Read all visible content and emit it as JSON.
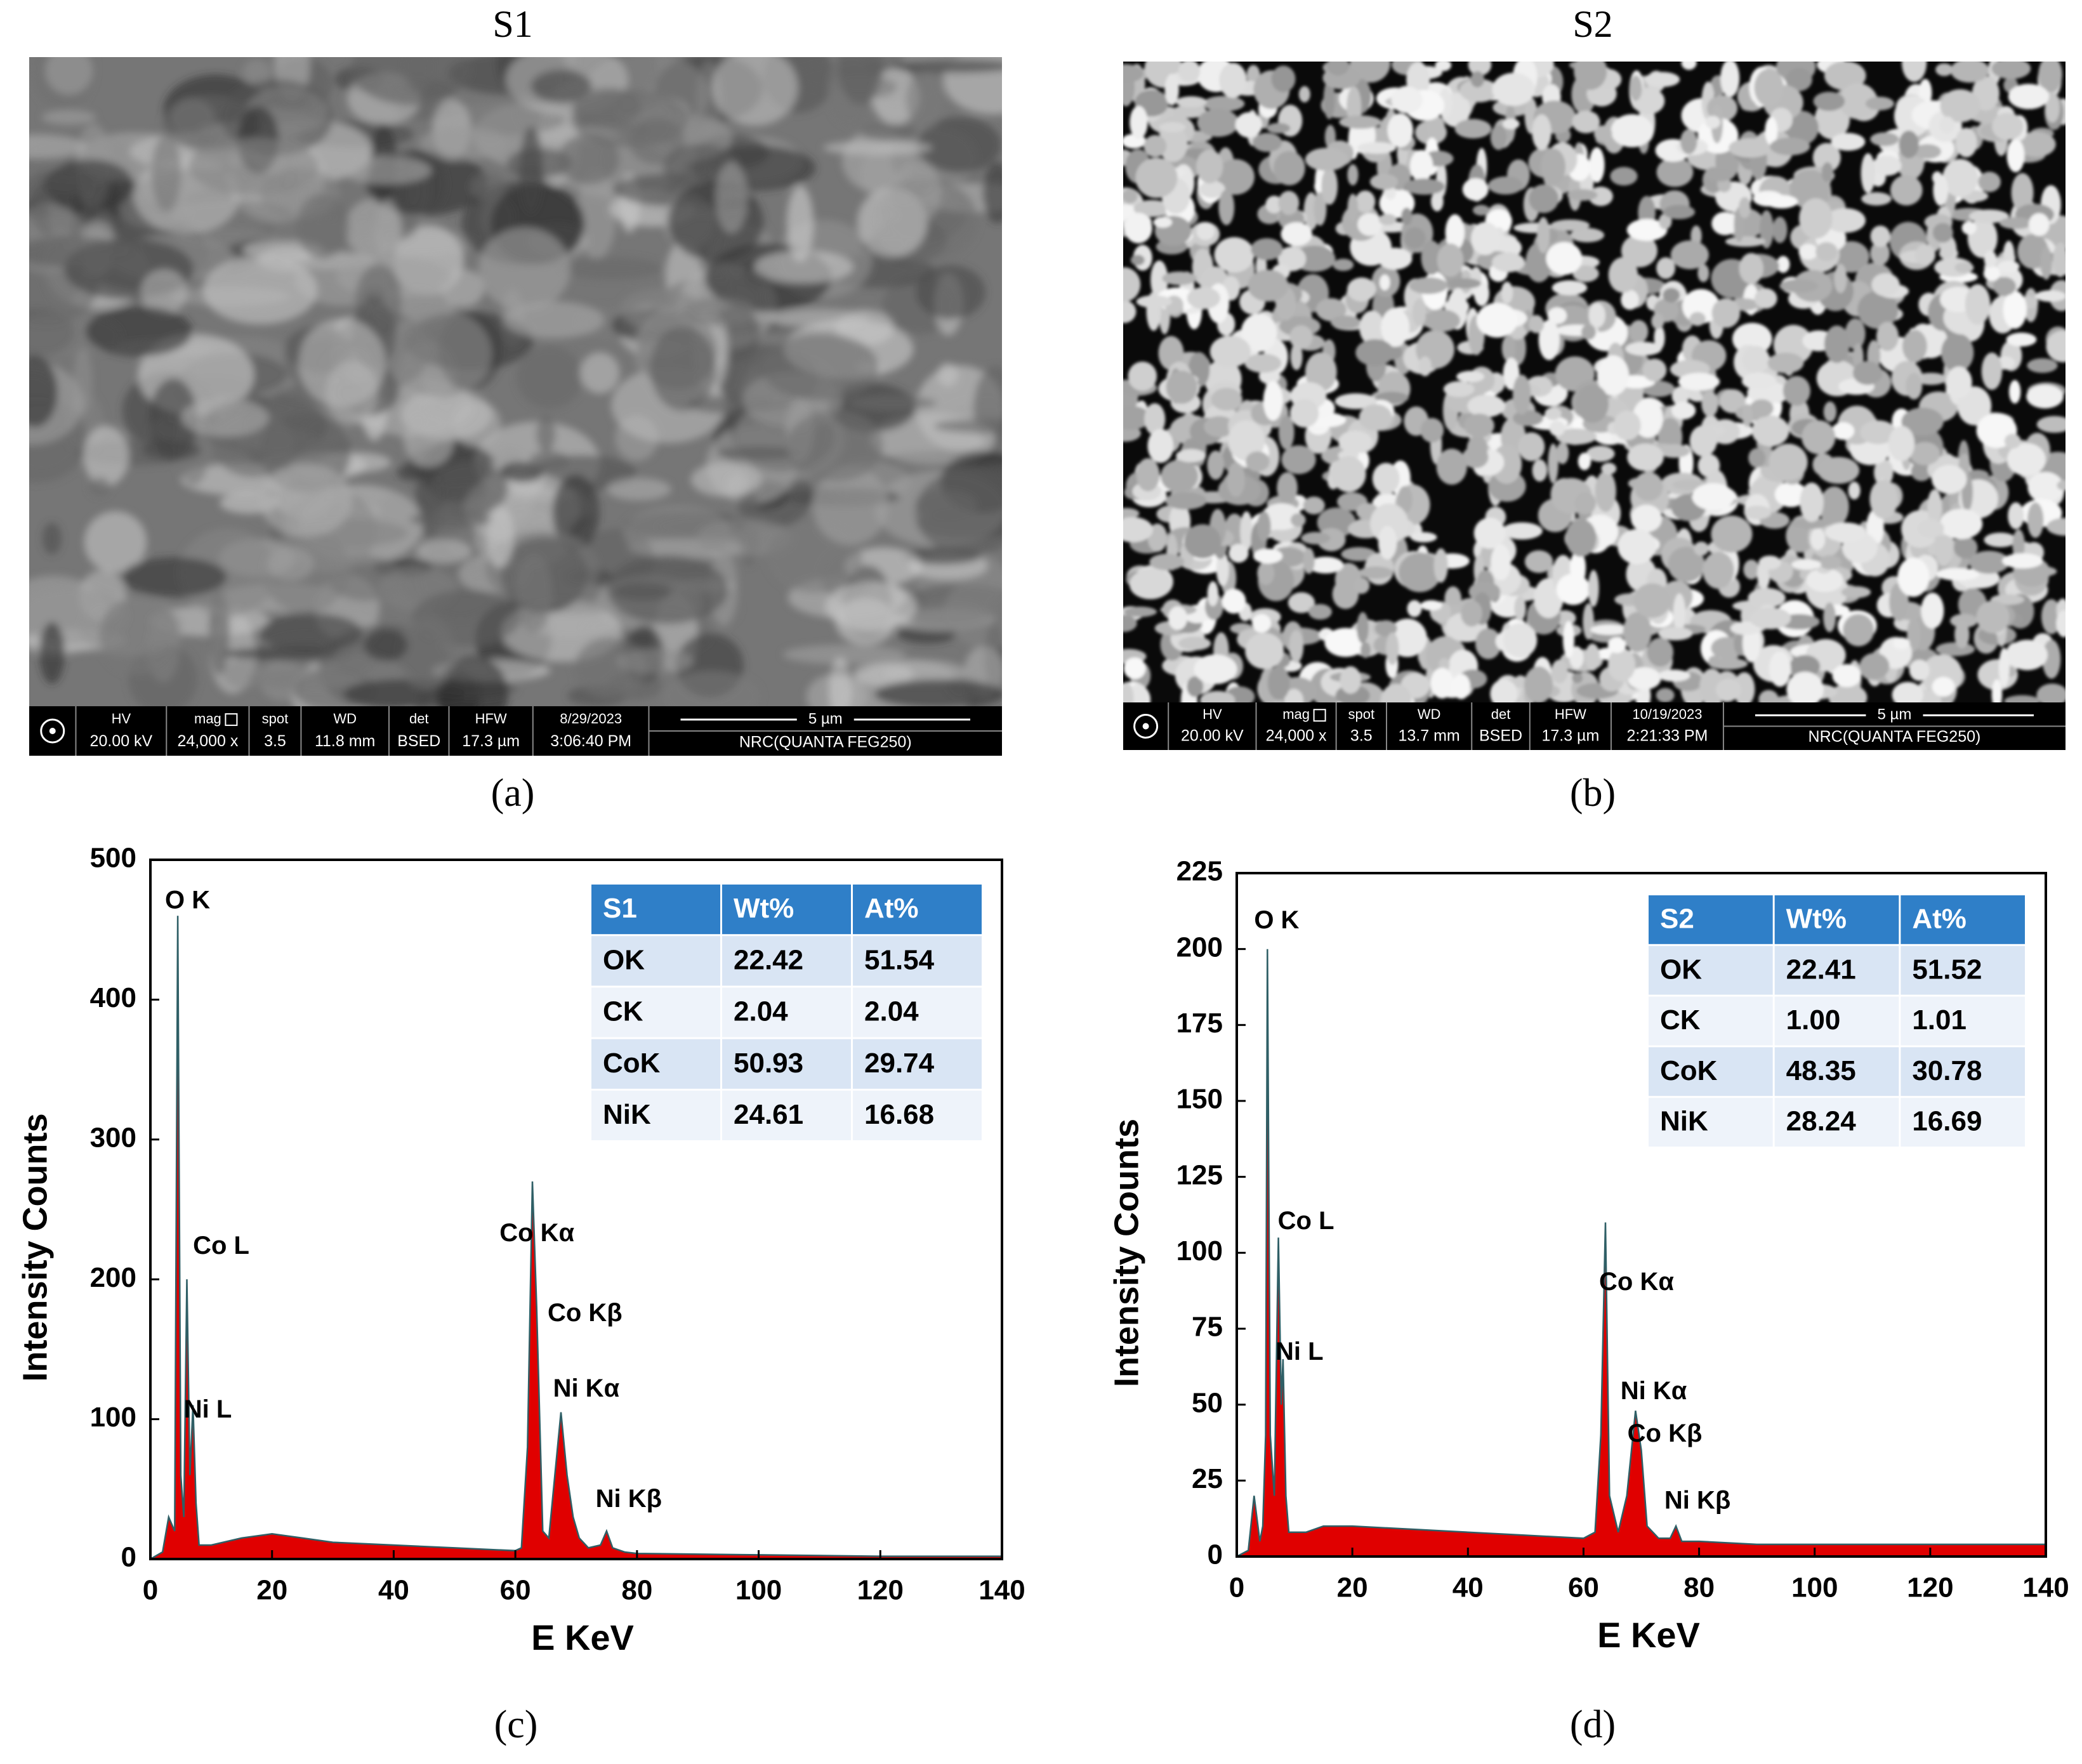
{
  "images": [
    {
      "title": "S1",
      "label": "(a)",
      "info": [
        [
          "HV",
          "20.00 kV"
        ],
        [
          "mag",
          "24,000 x"
        ],
        [
          "spot",
          "3.5"
        ],
        [
          "WD",
          "11.8 mm"
        ],
        [
          "det",
          "BSED"
        ],
        [
          "HFW",
          "17.3 µm"
        ],
        [
          "8/29/2023",
          "3:06:40 PM"
        ]
      ],
      "scale": "5 µm",
      "instrument": "NRC(QUANTA FEG250)"
    },
    {
      "title": "S2",
      "label": "(b)",
      "info": [
        [
          "HV",
          "20.00 kV"
        ],
        [
          "mag",
          "24,000 x"
        ],
        [
          "spot",
          "3.5"
        ],
        [
          "WD",
          "13.7 mm"
        ],
        [
          "det",
          "BSED"
        ],
        [
          "HFW",
          "17.3 µm"
        ],
        [
          "10/19/2023",
          "2:21:33 PM"
        ]
      ],
      "scale": "5 µm",
      "instrument": "NRC(QUANTA FEG250)"
    }
  ],
  "chart_data": [
    {
      "type": "area",
      "label": "(c)",
      "xlabel": "E KeV",
      "ylabel": "Intensity Counts",
      "color": "#e00000",
      "line_color": "#2f5f66",
      "x": [
        0,
        2,
        3,
        4,
        4.5,
        5,
        5.5,
        6,
        6.5,
        7,
        7.5,
        8,
        10,
        15,
        20,
        25,
        30,
        40,
        50,
        60,
        61,
        62,
        62.8,
        63.5,
        64.5,
        65.5,
        66.5,
        67.5,
        68.5,
        69.5,
        70.5,
        72,
        74,
        75,
        76,
        78,
        80,
        100,
        120,
        140
      ],
      "values": [
        0,
        5,
        30,
        20,
        460,
        60,
        30,
        200,
        60,
        110,
        40,
        10,
        10,
        15,
        18,
        15,
        12,
        10,
        8,
        6,
        8,
        80,
        270,
        180,
        20,
        15,
        60,
        105,
        60,
        30,
        15,
        8,
        10,
        20,
        8,
        5,
        4,
        3,
        2,
        2
      ],
      "xlim": [
        0,
        140
      ],
      "ylim": [
        0,
        500
      ],
      "xticks": [
        0,
        20,
        40,
        60,
        80,
        100,
        120,
        140
      ],
      "yticks": [
        0,
        100,
        200,
        300,
        400,
        500
      ],
      "annotations": [
        {
          "text": "O K",
          "x": 2.4,
          "y": 470
        },
        {
          "text": "Co L",
          "x": 7,
          "y": 223
        },
        {
          "text": "Ni L",
          "x": 5.5,
          "y": 106
        },
        {
          "text": "Co Kα",
          "x": 57.4,
          "y": 232
        },
        {
          "text": "Co Kβ",
          "x": 65.3,
          "y": 175
        },
        {
          "text": "Ni Kα",
          "x": 66.2,
          "y": 121
        },
        {
          "text": "Ni Kβ",
          "x": 73.2,
          "y": 42
        }
      ],
      "table": {
        "header": [
          "S1",
          "Wt%",
          "At%"
        ],
        "rows": [
          [
            "OK",
            "22.42",
            "51.54"
          ],
          [
            "CK",
            "2.04",
            "2.04"
          ],
          [
            "CoK",
            "50.93",
            "29.74"
          ],
          [
            "NiK",
            "24.61",
            "16.68"
          ]
        ]
      }
    },
    {
      "type": "area",
      "label": "(d)",
      "xlabel": "E KeV",
      "ylabel": "Intensity Counts",
      "color": "#e00000",
      "line_color": "#2f5f66",
      "x": [
        0,
        2,
        3,
        4,
        4.5,
        5,
        5.3,
        5.8,
        6.5,
        7.2,
        7.7,
        8,
        8.5,
        9,
        12,
        15,
        20,
        30,
        40,
        50,
        60,
        62,
        63,
        63.8,
        64.5,
        66,
        67.5,
        69,
        70,
        71,
        73,
        75,
        76,
        77,
        80,
        90,
        100,
        120,
        140
      ],
      "values": [
        0,
        2,
        20,
        5,
        10,
        40,
        200,
        40,
        20,
        105,
        50,
        65,
        20,
        8,
        8,
        10,
        10,
        9,
        8,
        7,
        6,
        8,
        40,
        110,
        20,
        8,
        20,
        48,
        35,
        10,
        6,
        6,
        10,
        5,
        5,
        4,
        4,
        4,
        4
      ],
      "xlim": [
        0,
        140
      ],
      "ylim": [
        0,
        225
      ],
      "xticks": [
        0,
        20,
        40,
        60,
        80,
        100,
        120,
        140
      ],
      "yticks": [
        0,
        25,
        50,
        75,
        100,
        125,
        150,
        175,
        200,
        225
      ],
      "annotations": [
        {
          "text": "O K",
          "x": 3,
          "y": 209
        },
        {
          "text": "Co L",
          "x": 7.1,
          "y": 110
        },
        {
          "text": "Ni L",
          "x": 6.7,
          "y": 67
        },
        {
          "text": "Co Kα",
          "x": 62.7,
          "y": 90
        },
        {
          "text": "Ni Kα",
          "x": 66.4,
          "y": 54
        },
        {
          "text": "Co Kβ",
          "x": 67.6,
          "y": 40
        },
        {
          "text": "Ni Kβ",
          "x": 74,
          "y": 18
        }
      ],
      "table": {
        "header": [
          "S2",
          "Wt%",
          "At%"
        ],
        "rows": [
          [
            "OK",
            "22.41",
            "51.52"
          ],
          [
            "CK",
            "1.00",
            "1.01"
          ],
          [
            "CoK",
            "48.35",
            "30.78"
          ],
          [
            "NiK",
            "28.24",
            "16.69"
          ]
        ]
      }
    }
  ]
}
